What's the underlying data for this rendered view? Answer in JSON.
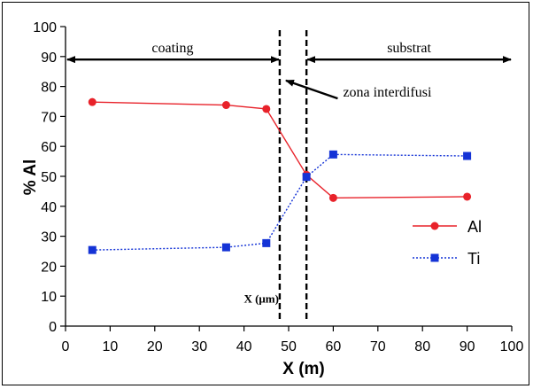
{
  "chart_data": {
    "type": "line",
    "title": "",
    "xlabel": "X (m)",
    "ylabel": "% Al",
    "xlim": [
      0,
      100
    ],
    "ylim": [
      0,
      100
    ],
    "x_ticks": [
      0,
      10,
      20,
      30,
      40,
      50,
      60,
      70,
      80,
      90,
      100
    ],
    "y_ticks": [
      0,
      10,
      20,
      30,
      40,
      50,
      60,
      70,
      80,
      90,
      100
    ],
    "grid": false,
    "legend_position": "right",
    "series": [
      {
        "name": "Al",
        "color": "#e8222a",
        "marker": "circle",
        "line_style": "solid",
        "x": [
          6,
          36,
          45,
          54,
          60,
          90
        ],
        "y": [
          74.8,
          73.8,
          72.5,
          50.5,
          42.8,
          43.2
        ]
      },
      {
        "name": "Ti",
        "color": "#1433d6",
        "marker": "square",
        "line_style": "dotted",
        "x": [
          6,
          36,
          45,
          54,
          60,
          90
        ],
        "y": [
          25.4,
          26.3,
          27.7,
          49.8,
          57.3,
          56.8
        ]
      }
    ],
    "annotations": {
      "coating_label": "coating",
      "substrat_label": "substrat",
      "zona_label": "zona interdifusi",
      "x_um_label": "X (μm)",
      "dashed_lines_x": [
        48,
        54
      ],
      "region_arrow_y": 89,
      "coating_range": [
        0,
        48
      ],
      "substrat_range": [
        54,
        100
      ],
      "zona_arrow_from": [
        61,
        76
      ],
      "zona_arrow_to": [
        49,
        82
      ],
      "x_um_pos": [
        49,
        9
      ]
    }
  }
}
